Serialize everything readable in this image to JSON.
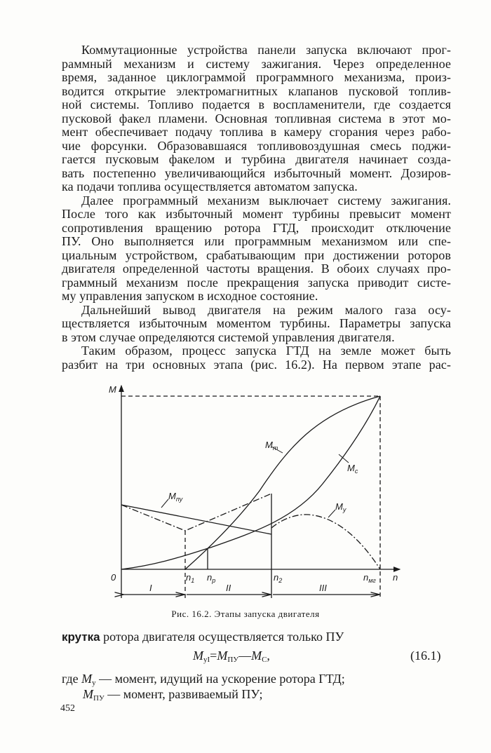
{
  "paragraphs": [
    {
      "lines": [
        "Коммутационные устройства панели запуска включают прог-",
        "раммный механизм и систему зажигания. Через определенное",
        "время, заданное циклограммой программного механизма, произ-",
        "водится открытие электромагнитных клапанов пусковой топлив-",
        "ной системы. Топливо подается в воспламенители, где создается",
        "пусковой факел пламени. Основная топливная система в этот мо-",
        "мент обеспечивает подачу топлива в камеру сгорания через рабо-",
        "чие форсунки. Образовавшаяся топливовоздушная смесь поджи-",
        "гается пусковым факелом и турбина двигателя начинает созда-",
        "вать постепенно увеличивающийся избыточный момент. Дозиров-",
        "ка подачи топлива осуществляется автоматом запуска."
      ]
    },
    {
      "lines": [
        "Далее программный механизм выключает систему зажигания.",
        "После того как избыточный момент турбины превысит момент",
        "сопротивления вращению ротора ГТД, происходит отключение",
        "ПУ. Оно выполняется или программным механизмом или спе-",
        "циальным устройством, срабатывающим при достижении роторов",
        "двигателя определенной частоты вращения. В обоих случаях про-",
        "граммный механизм после прекращения запуска приводит систе-",
        "му управления запуском в исходное состояние."
      ]
    },
    {
      "lines": [
        "Дальнейший вывод двигателя на режим малого газа осу-",
        "ществляется избыточным моментом турбины. Параметры запуска",
        "в этом случае определяются системой управления двигателя."
      ]
    },
    {
      "lines": [
        "Таким образом, процесс запуска ГТД на земле может быть",
        "разбит на три основных этапа (рис. 16.2). На первом этапе рас-"
      ]
    }
  ],
  "figure": {
    "axis_y": "M",
    "axis_x": "n",
    "origin": "0",
    "ticks": [
      {
        "main": "n",
        "sub": "1"
      },
      {
        "main": "n",
        "sub": "р"
      },
      {
        "main": "n",
        "sub": "2"
      },
      {
        "main": "n",
        "sub": "мг"
      }
    ],
    "stages": [
      "I",
      "II",
      "III"
    ],
    "curves": {
      "Mt": {
        "main": "M",
        "sub": "т"
      },
      "Mc": {
        "main": "M",
        "sub": "с"
      },
      "Mpu": {
        "main": "M",
        "sub": "пу"
      },
      "My": {
        "main": "M",
        "sub": "у"
      }
    },
    "caption": "Рис. 16.2. Этапы запуска двигателя"
  },
  "after": {
    "line1_bold": "крутка",
    "line1_rest": " ротора двигателя осуществляется только ПУ",
    "formula": {
      "lhs": "M",
      "lhs_sub": "уI",
      "eq": "=",
      "t1": "M",
      "t1_sub": "ПУ",
      "minus": "—",
      "t2": "M",
      "t2_sub": "С",
      "tail": ","
    },
    "formula_number": "(16.1)",
    "def1_prefix": "где ",
    "def1_sym": "M",
    "def1_sub": "у",
    "def1_text": " — момент, идущий на ускорение ротора ГТД;",
    "def2_sym": "M",
    "def2_sub": "ПУ",
    "def2_text": " — момент, развиваемый ПУ;"
  },
  "page_number": "452"
}
